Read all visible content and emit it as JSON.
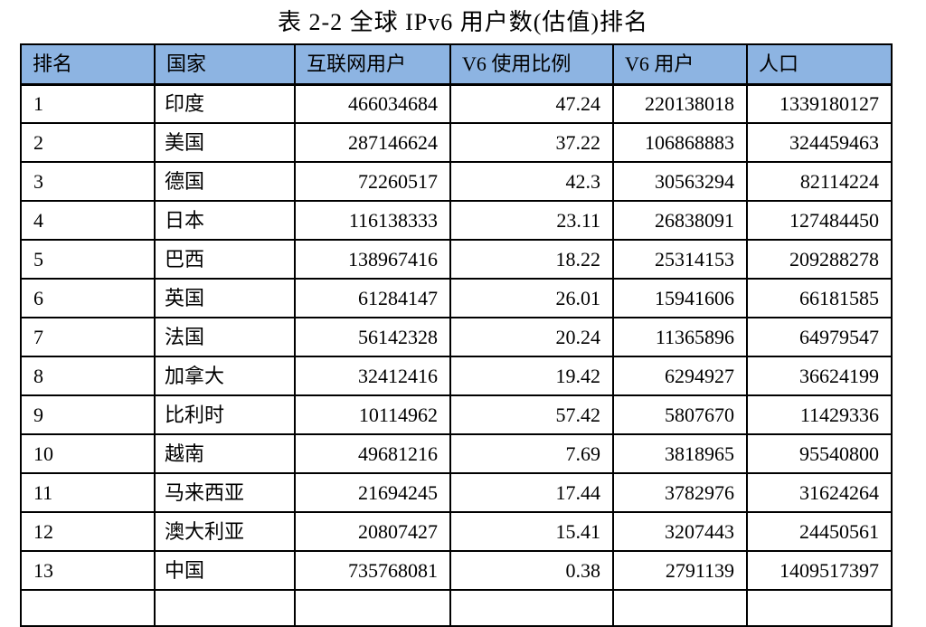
{
  "title": "表 2-2  全球 IPv6 用户数(估值)排名",
  "table": {
    "header_bg": "#8DB4E2",
    "border_color": "#000000",
    "columns": [
      "排名",
      "国家",
      "互联网用户",
      "V6 使用比例",
      "V6 用户",
      "人口"
    ],
    "rows": [
      [
        "1",
        "印度",
        "466034684",
        "47.24",
        "220138018",
        "1339180127"
      ],
      [
        "2",
        "美国",
        "287146624",
        "37.22",
        "106868883",
        "324459463"
      ],
      [
        "3",
        "德国",
        "72260517",
        "42.3",
        "30563294",
        "82114224"
      ],
      [
        "4",
        "日本",
        "116138333",
        "23.11",
        "26838091",
        "127484450"
      ],
      [
        "5",
        "巴西",
        "138967416",
        "18.22",
        "25314153",
        "209288278"
      ],
      [
        "6",
        "英国",
        "61284147",
        "26.01",
        "15941606",
        "66181585"
      ],
      [
        "7",
        "法国",
        "56142328",
        "20.24",
        "11365896",
        "64979547"
      ],
      [
        "8",
        "加拿大",
        "32412416",
        "19.42",
        "6294927",
        "36624199"
      ],
      [
        "9",
        "比利时",
        "10114962",
        "57.42",
        "5807670",
        "11429336"
      ],
      [
        "10",
        "越南",
        "49681216",
        "7.69",
        "3818965",
        "95540800"
      ],
      [
        "11",
        "马来西亚",
        "21694245",
        "17.44",
        "3782976",
        "31624264"
      ],
      [
        "12",
        "澳大利亚",
        "20807427",
        "15.41",
        "3207443",
        "24450561"
      ],
      [
        "13",
        "中国",
        "735768081",
        "0.38",
        "2791139",
        "1409517397"
      ]
    ]
  }
}
